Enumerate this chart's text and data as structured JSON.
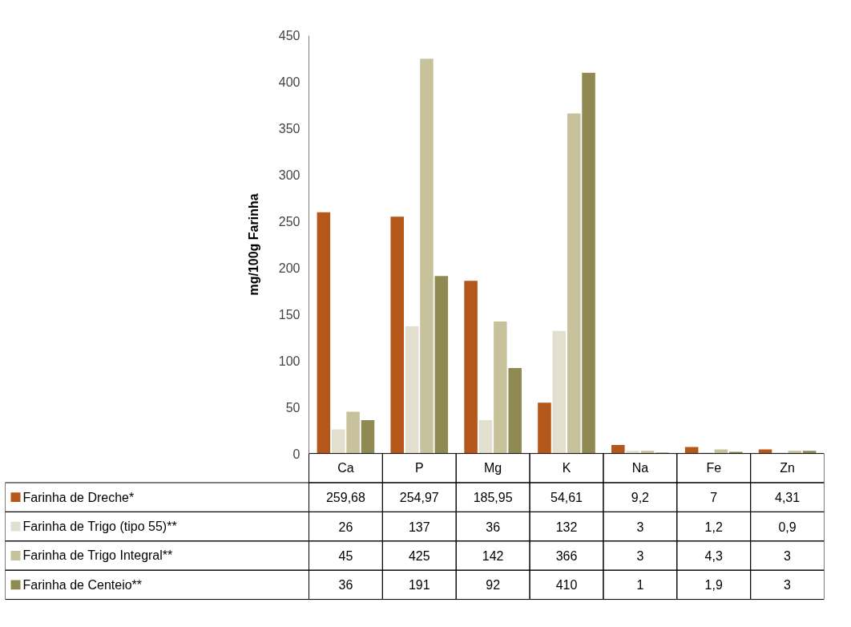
{
  "chart_data": {
    "type": "bar",
    "ylabel": "mg/100g Farinha",
    "categories": [
      "Ca",
      "P",
      "Mg",
      "K",
      "Na",
      "Fe",
      "Zn"
    ],
    "series": [
      {
        "name": "Farinha de Dreche*",
        "color": "#b5561a",
        "values": [
          259.68,
          254.97,
          185.95,
          54.61,
          9.2,
          7,
          4.31
        ],
        "value_labels": [
          "259,68",
          "254,97",
          "185,95",
          "54,61",
          "9,2",
          "7",
          "4,31"
        ]
      },
      {
        "name": "Farinha de Trigo (tipo 55)**",
        "color": "#e3dfcf",
        "values": [
          26,
          137,
          36,
          132,
          3,
          1.2,
          0.9
        ],
        "value_labels": [
          "26",
          "137",
          "36",
          "132",
          "3",
          "1,2",
          "0,9"
        ]
      },
      {
        "name": "Farinha de Trigo Integral**",
        "color": "#c8c29c",
        "values": [
          45,
          425,
          142,
          366,
          3,
          4.3,
          3
        ],
        "value_labels": [
          "45",
          "425",
          "142",
          "366",
          "3",
          "4,3",
          "3"
        ]
      },
      {
        "name": "Farinha de Centeio**",
        "color": "#8e8a52",
        "values": [
          36,
          191,
          92,
          410,
          1,
          1.9,
          3
        ],
        "value_labels": [
          "36",
          "191",
          "92",
          "410",
          "1",
          "1,9",
          "3"
        ]
      }
    ],
    "ylim": [
      0,
      450
    ],
    "yticks": [
      0,
      50,
      100,
      150,
      200,
      250,
      300,
      350,
      400,
      450
    ],
    "legend": "bottom",
    "grid": false
  }
}
